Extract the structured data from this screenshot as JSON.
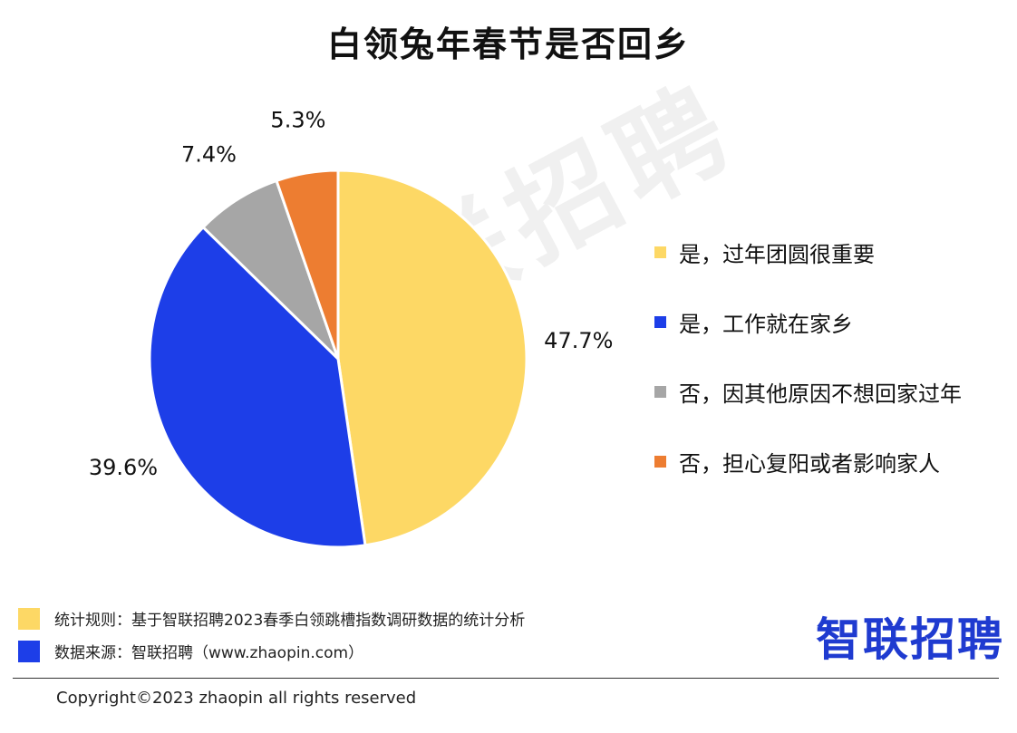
{
  "chart_data": {
    "type": "pie",
    "title": "白领兔年春节是否回乡",
    "categories": [
      "是，过年团圆很重要",
      "是，工作就在家乡",
      "否，因其他原因不想回家过年",
      "否，担心复阳或者影响家人"
    ],
    "values": [
      47.7,
      39.6,
      7.4,
      5.3
    ],
    "value_labels": [
      "47.7%",
      "39.6%",
      "7.4%",
      "5.3%"
    ],
    "colors": [
      "#fdd865",
      "#1d3ee8",
      "#a6a6a6",
      "#ed7d31"
    ],
    "legend_position": "right",
    "start_angle": "12 o'clock, clockwise"
  },
  "watermark": "智联招聘",
  "footer": {
    "notes": [
      {
        "text": "统计规则：基于智联招聘2023春季白领跳槽指数调研数据的统计分析",
        "color": "#fdd865"
      },
      {
        "text": "数据来源：智联招聘（www.zhaopin.com）",
        "color": "#1d3ee8"
      }
    ],
    "brand": "智联招聘",
    "copyright": "Copyright©2023 zhaopin all rights reserved"
  }
}
